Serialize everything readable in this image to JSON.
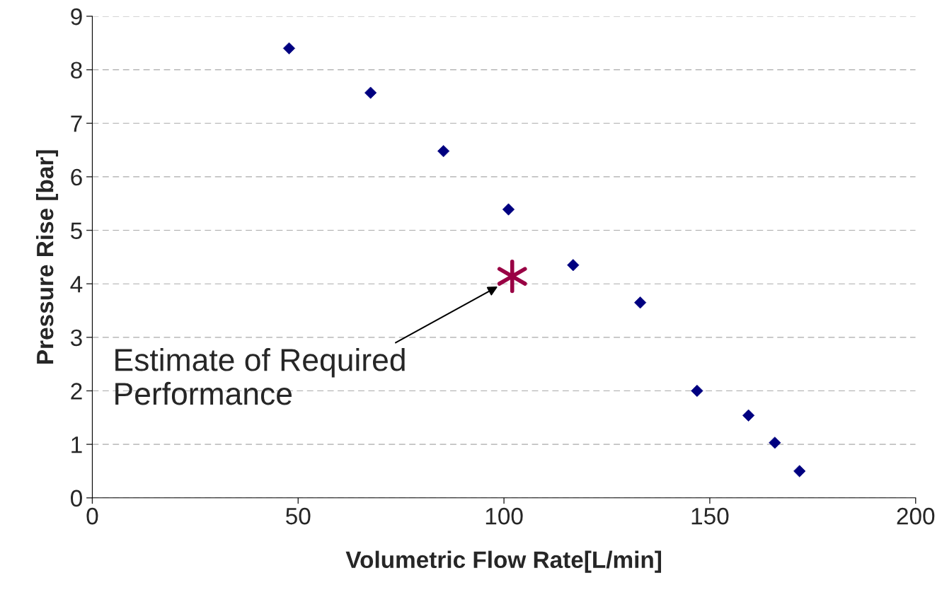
{
  "chart_data": {
    "type": "scatter",
    "xlabel": "Volumetric Flow Rate[L/min]",
    "ylabel": "Pressure Rise [bar]",
    "xlim": [
      0,
      200
    ],
    "xticks": [
      0,
      50,
      100,
      150,
      200
    ],
    "ylim": [
      0,
      9
    ],
    "yticks": [
      0,
      1,
      2,
      3,
      4,
      5,
      6,
      7,
      8,
      9
    ],
    "grid": "y",
    "legend": false,
    "series": [
      {
        "marker": "diamond",
        "color": "#000080",
        "x": [
          47.8,
          67.6,
          85.3,
          101.1,
          116.8,
          133.1,
          146.9,
          159.4,
          165.8,
          171.8
        ],
        "values": [
          8.4,
          7.57,
          6.48,
          5.39,
          4.35,
          3.65,
          2.0,
          1.54,
          1.03,
          0.5
        ]
      },
      {
        "marker": "cross",
        "color": "#990044",
        "x": [
          102.0
        ],
        "values": [
          4.14
        ]
      }
    ],
    "annotations": [
      {
        "text": "Estimate of Required\nPerformance",
        "x": 98.5,
        "y": 3.95
      }
    ]
  }
}
